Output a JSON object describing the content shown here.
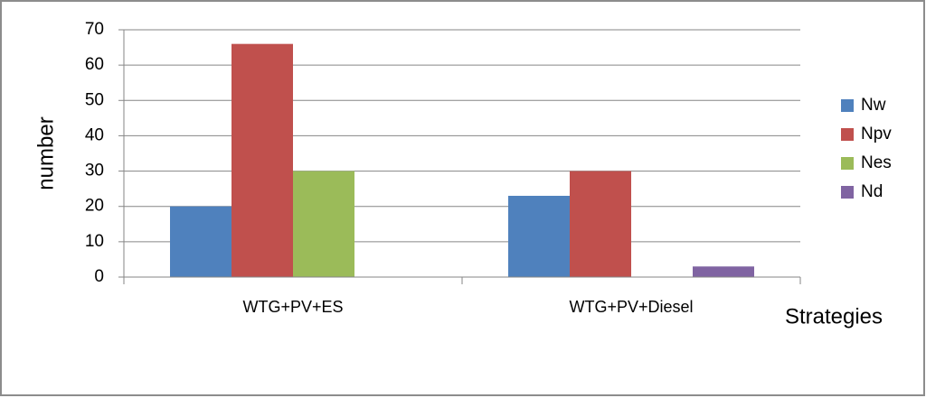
{
  "chart_data": {
    "type": "bar",
    "x_label": "Strategies",
    "y_label": "number",
    "categories": [
      "WTG+PV+ES",
      "WTG+PV+Diesel"
    ],
    "series": [
      {
        "name": "Nw",
        "color": "#4f81bd",
        "values": [
          20,
          23
        ]
      },
      {
        "name": "Npv",
        "color": "#c0504d",
        "values": [
          66,
          30
        ]
      },
      {
        "name": "Nes",
        "color": "#9bbb59",
        "values": [
          30,
          0
        ]
      },
      {
        "name": "Nd",
        "color": "#8064a2",
        "values": [
          0,
          3
        ]
      }
    ],
    "ylim": [
      0,
      70
    ],
    "yticks": [
      0,
      10,
      20,
      30,
      40,
      50,
      60,
      70
    ],
    "grid": true,
    "legend": "right"
  }
}
